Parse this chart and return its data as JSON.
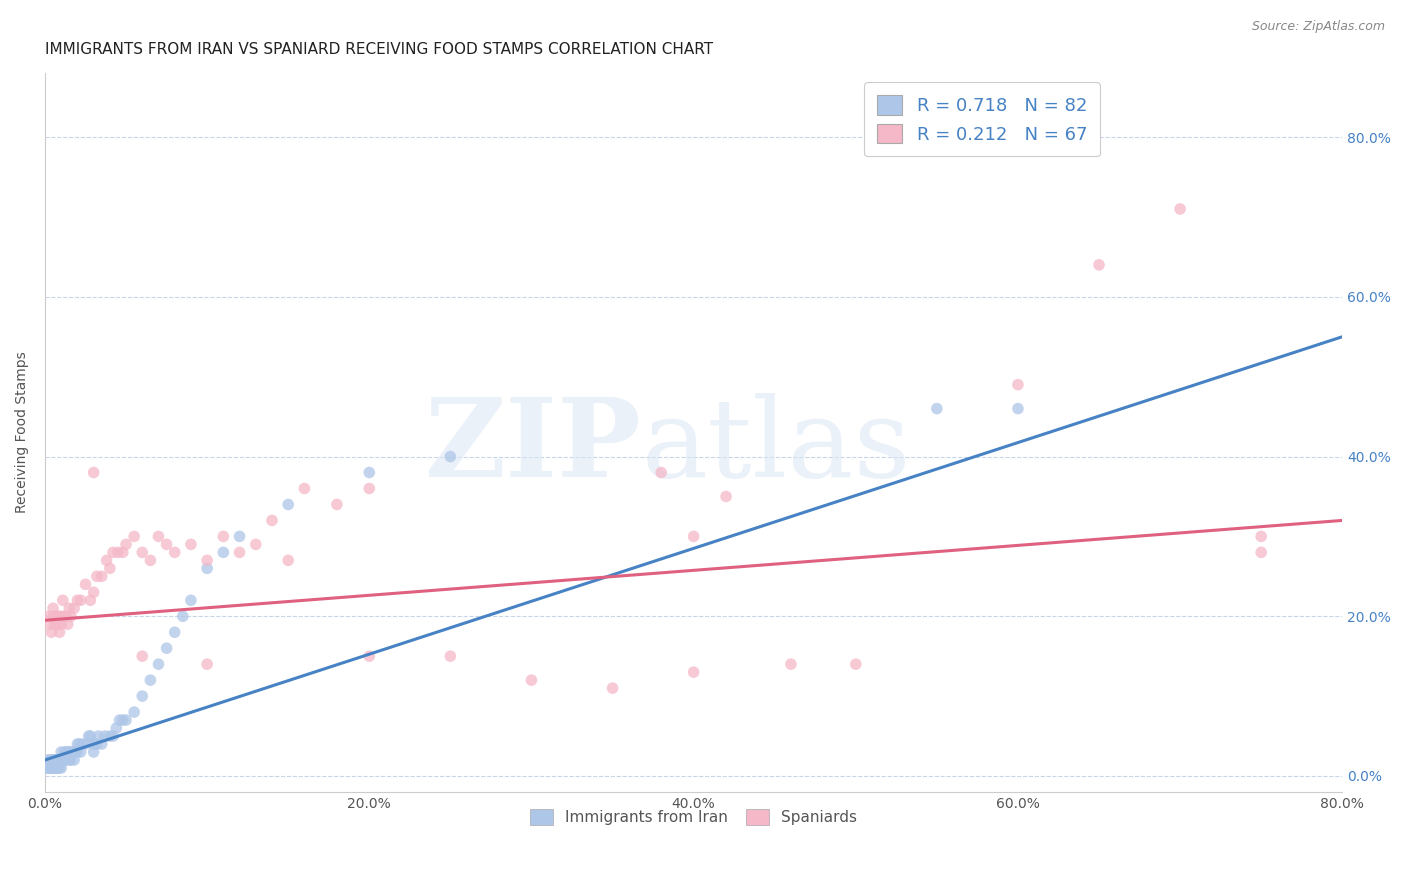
{
  "title": "IMMIGRANTS FROM IRAN VS SPANIARD RECEIVING FOOD STAMPS CORRELATION CHART",
  "source": "Source: ZipAtlas.com",
  "ylabel": "Receiving Food Stamps",
  "xlim": [
    0.0,
    0.8
  ],
  "ylim": [
    -0.02,
    0.88
  ],
  "ytick_labels": [
    "0.0%",
    "20.0%",
    "40.0%",
    "60.0%",
    "80.0%"
  ],
  "ytick_values": [
    0.0,
    0.2,
    0.4,
    0.6,
    0.8
  ],
  "xtick_labels": [
    "0.0%",
    "20.0%",
    "40.0%",
    "60.0%",
    "80.0%"
  ],
  "xtick_values": [
    0.0,
    0.2,
    0.4,
    0.6,
    0.8
  ],
  "legend_bottom": [
    "Immigrants from Iran",
    "Spaniards"
  ],
  "iran_color": "#aec6e8",
  "spain_color": "#f4b8c8",
  "iran_line_color": "#4682c4",
  "spain_line_color": "#e06080",
  "tick_color": "#4682c4",
  "background_color": "#ffffff",
  "grid_color": "#c8d4e8",
  "iran_R": 0.718,
  "iran_N": 82,
  "spain_R": 0.212,
  "spain_N": 67,
  "iran_x": [
    0.001,
    0.002,
    0.002,
    0.003,
    0.003,
    0.003,
    0.004,
    0.004,
    0.004,
    0.005,
    0.005,
    0.005,
    0.005,
    0.005,
    0.006,
    0.006,
    0.006,
    0.006,
    0.007,
    0.007,
    0.007,
    0.007,
    0.008,
    0.008,
    0.008,
    0.009,
    0.009,
    0.01,
    0.01,
    0.01,
    0.01,
    0.011,
    0.011,
    0.012,
    0.012,
    0.013,
    0.013,
    0.014,
    0.015,
    0.015,
    0.016,
    0.016,
    0.017,
    0.018,
    0.018,
    0.019,
    0.02,
    0.02,
    0.021,
    0.022,
    0.023,
    0.025,
    0.027,
    0.028,
    0.03,
    0.03,
    0.032,
    0.033,
    0.035,
    0.037,
    0.04,
    0.042,
    0.044,
    0.046,
    0.048,
    0.05,
    0.055,
    0.06,
    0.065,
    0.07,
    0.075,
    0.08,
    0.085,
    0.09,
    0.1,
    0.11,
    0.12,
    0.15,
    0.2,
    0.25,
    0.55,
    0.6
  ],
  "iran_y": [
    0.01,
    0.01,
    0.02,
    0.01,
    0.01,
    0.02,
    0.01,
    0.01,
    0.02,
    0.01,
    0.01,
    0.02,
    0.01,
    0.02,
    0.01,
    0.01,
    0.02,
    0.02,
    0.01,
    0.01,
    0.02,
    0.02,
    0.01,
    0.01,
    0.02,
    0.01,
    0.02,
    0.01,
    0.02,
    0.02,
    0.03,
    0.02,
    0.02,
    0.02,
    0.03,
    0.02,
    0.03,
    0.03,
    0.02,
    0.03,
    0.02,
    0.03,
    0.03,
    0.02,
    0.03,
    0.03,
    0.03,
    0.04,
    0.04,
    0.03,
    0.04,
    0.04,
    0.05,
    0.05,
    0.03,
    0.04,
    0.04,
    0.05,
    0.04,
    0.05,
    0.05,
    0.05,
    0.06,
    0.07,
    0.07,
    0.07,
    0.08,
    0.1,
    0.12,
    0.14,
    0.16,
    0.18,
    0.2,
    0.22,
    0.26,
    0.28,
    0.3,
    0.34,
    0.38,
    0.4,
    0.46,
    0.46
  ],
  "spain_x": [
    0.002,
    0.003,
    0.004,
    0.005,
    0.005,
    0.006,
    0.006,
    0.007,
    0.008,
    0.008,
    0.009,
    0.01,
    0.01,
    0.011,
    0.012,
    0.013,
    0.014,
    0.015,
    0.016,
    0.018,
    0.02,
    0.022,
    0.025,
    0.028,
    0.03,
    0.032,
    0.035,
    0.038,
    0.04,
    0.042,
    0.045,
    0.048,
    0.05,
    0.055,
    0.06,
    0.065,
    0.07,
    0.075,
    0.08,
    0.09,
    0.1,
    0.11,
    0.12,
    0.13,
    0.14,
    0.15,
    0.16,
    0.18,
    0.2,
    0.25,
    0.3,
    0.35,
    0.4,
    0.5,
    0.6,
    0.65,
    0.7,
    0.75,
    0.38,
    0.42,
    0.46,
    0.03,
    0.06,
    0.1,
    0.2,
    0.4,
    0.75
  ],
  "spain_y": [
    0.2,
    0.19,
    0.18,
    0.2,
    0.21,
    0.19,
    0.2,
    0.2,
    0.19,
    0.2,
    0.18,
    0.19,
    0.2,
    0.22,
    0.2,
    0.2,
    0.19,
    0.21,
    0.2,
    0.21,
    0.22,
    0.22,
    0.24,
    0.22,
    0.23,
    0.25,
    0.25,
    0.27,
    0.26,
    0.28,
    0.28,
    0.28,
    0.29,
    0.3,
    0.28,
    0.27,
    0.3,
    0.29,
    0.28,
    0.29,
    0.27,
    0.3,
    0.28,
    0.29,
    0.32,
    0.27,
    0.36,
    0.34,
    0.36,
    0.15,
    0.12,
    0.11,
    0.13,
    0.14,
    0.49,
    0.64,
    0.71,
    0.28,
    0.38,
    0.35,
    0.14,
    0.38,
    0.15,
    0.14,
    0.15,
    0.3,
    0.3
  ]
}
